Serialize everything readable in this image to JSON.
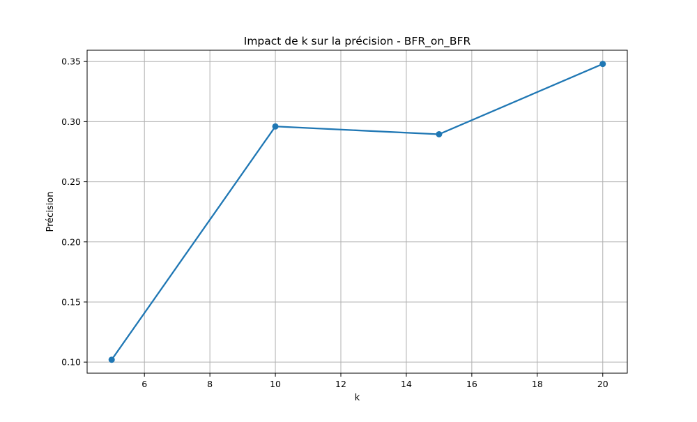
{
  "chart_data": {
    "type": "line",
    "title": "Impact de k sur la précision - BFR_on_BFR",
    "xlabel": "k",
    "ylabel": "Précision",
    "x": [
      5,
      10,
      15,
      20
    ],
    "series": [
      {
        "values": [
          0.102,
          0.296,
          0.2895,
          0.348
        ]
      }
    ],
    "xlim": [
      4.25,
      20.75
    ],
    "ylim": [
      0.0908,
      0.3594
    ],
    "xticks": [
      6,
      8,
      10,
      12,
      14,
      16,
      18,
      20
    ],
    "xtick_labels": [
      "6",
      "8",
      "10",
      "12",
      "14",
      "16",
      "18",
      "20"
    ],
    "yticks": [
      0.1,
      0.15,
      0.2,
      0.25,
      0.3,
      0.35
    ],
    "ytick_labels": [
      "0.10",
      "0.15",
      "0.20",
      "0.25",
      "0.30",
      "0.35"
    ],
    "grid": true,
    "markers": "circle",
    "colors": {
      "line": "#1f77b4",
      "grid": "#b0b0b0",
      "axes": "#000000"
    }
  }
}
